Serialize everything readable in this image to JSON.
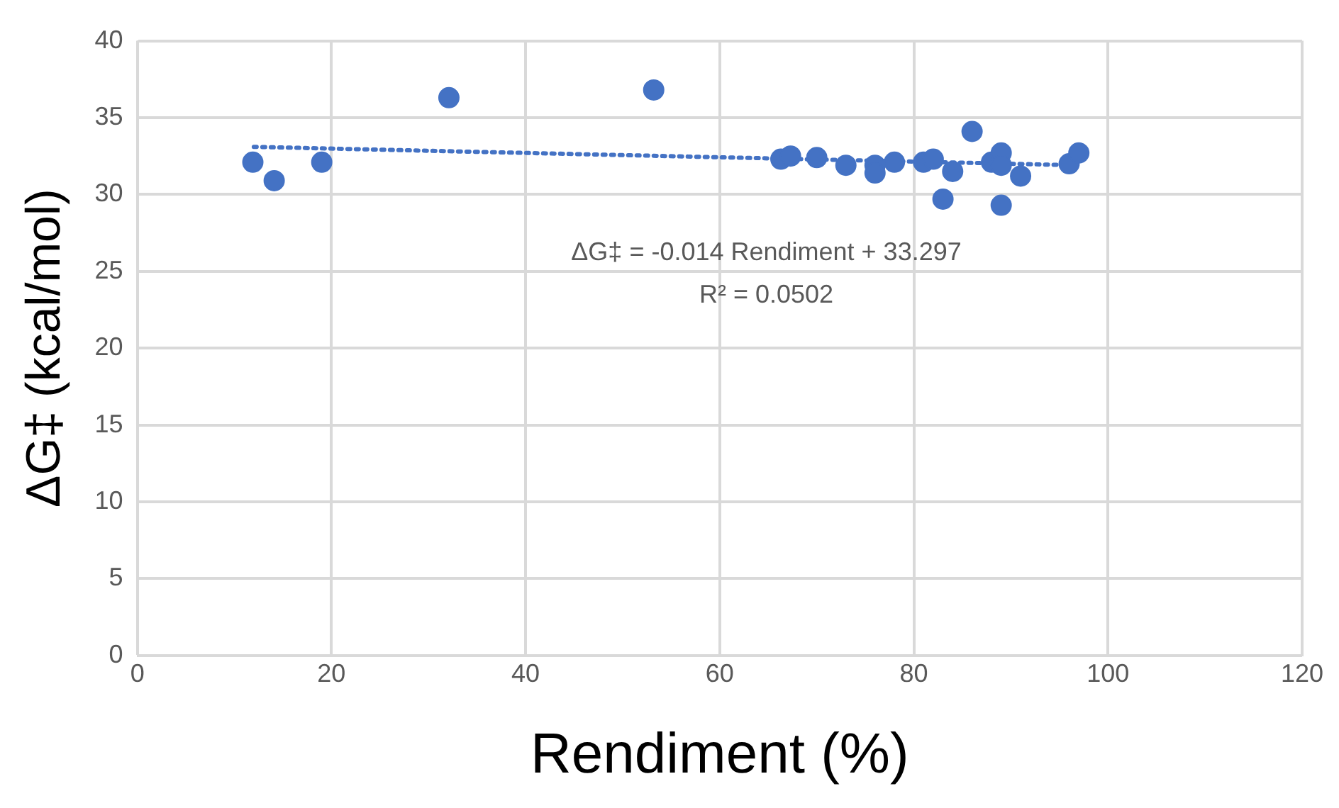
{
  "chart_data": {
    "type": "scatter",
    "xlabel": "Rendiment (%)",
    "ylabel": "ΔG‡ (kcal/mol)",
    "xlim": [
      0,
      120
    ],
    "xticks": [
      0,
      20,
      40,
      60,
      80,
      100,
      120
    ],
    "ylim": [
      0,
      40
    ],
    "yticks": [
      0,
      5,
      10,
      15,
      20,
      25,
      30,
      35,
      40
    ],
    "grid": true,
    "legend": false,
    "marker": "circle",
    "series": [
      {
        "color": "#4472c4",
        "x": [
          11.9,
          14.1,
          19,
          32.1,
          53.2,
          66.3,
          67.3,
          70,
          73,
          76,
          76,
          78,
          81,
          82,
          83,
          84,
          86,
          88,
          89,
          89,
          89,
          91,
          96,
          97
        ],
        "values": [
          32.1,
          30.9,
          32.1,
          36.3,
          36.8,
          32.3,
          32.5,
          32.4,
          31.9,
          31.9,
          31.4,
          32.1,
          32.1,
          32.3,
          29.7,
          31.5,
          34.1,
          32.1,
          32.7,
          31.9,
          29.3,
          31.2,
          32.0,
          32.7
        ]
      },
      {
        "type": "line",
        "color": "#4472c4",
        "line_style": "dotted",
        "marker": "none",
        "x": [
          12,
          97
        ],
        "values": [
          33.1,
          31.9
        ]
      }
    ],
    "annotations": [
      "ΔG‡ = -0.014 Rendiment + 33.297",
      "R² = 0.0502"
    ]
  }
}
